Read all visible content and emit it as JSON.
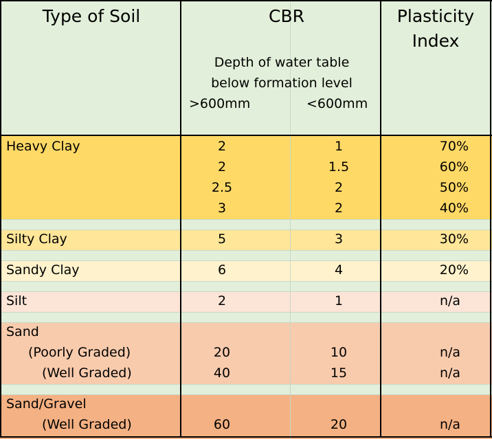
{
  "colors": {
    "header_bg": "#e2efda",
    "gap_bg": "#e2efda",
    "heavy_clay": "#ffd966",
    "silty_clay": "#ffe699",
    "sandy_clay": "#fff2cc",
    "silt": "#fce4d6",
    "sand": "#f8cbad",
    "sand_gravel": "#f4b183"
  },
  "header": {
    "soil": "Type of Soil",
    "cbr": "CBR",
    "depth_line1": "Depth of water table",
    "depth_line2": "below formation level",
    "gt600": ">600mm",
    "lt600": "<600mm",
    "pi_line1": "Plasticity",
    "pi_line2": "Index"
  },
  "rows": [
    {
      "soil": "Heavy Clay",
      "gt": "2",
      "lt": "1",
      "pi": "70%"
    },
    {
      "soil": "",
      "gt": "2",
      "lt": "1.5",
      "pi": "60%"
    },
    {
      "soil": "",
      "gt": "2.5",
      "lt": "2",
      "pi": "50%"
    },
    {
      "soil": "",
      "gt": "3",
      "lt": "2",
      "pi": "40%"
    },
    {
      "soil": "Silty Clay",
      "gt": "5",
      "lt": "3",
      "pi": "30%"
    },
    {
      "soil": "Sandy Clay",
      "gt": "6",
      "lt": "4",
      "pi": "20%"
    },
    {
      "soil": "Silt",
      "gt": "2",
      "lt": "1",
      "pi": "n/a"
    },
    {
      "soil": "Sand",
      "gt": "",
      "lt": "",
      "pi": ""
    },
    {
      "soil": "(Poorly Graded)",
      "gt": "20",
      "lt": "10",
      "pi": "n/a"
    },
    {
      "soil": "(Well Graded)",
      "gt": "40",
      "lt": "15",
      "pi": "n/a"
    },
    {
      "soil": "Sand/Gravel",
      "gt": "",
      "lt": "",
      "pi": ""
    },
    {
      "soil": "(Well Graded)",
      "gt": "60",
      "lt": "20",
      "pi": "n/a"
    }
  ]
}
